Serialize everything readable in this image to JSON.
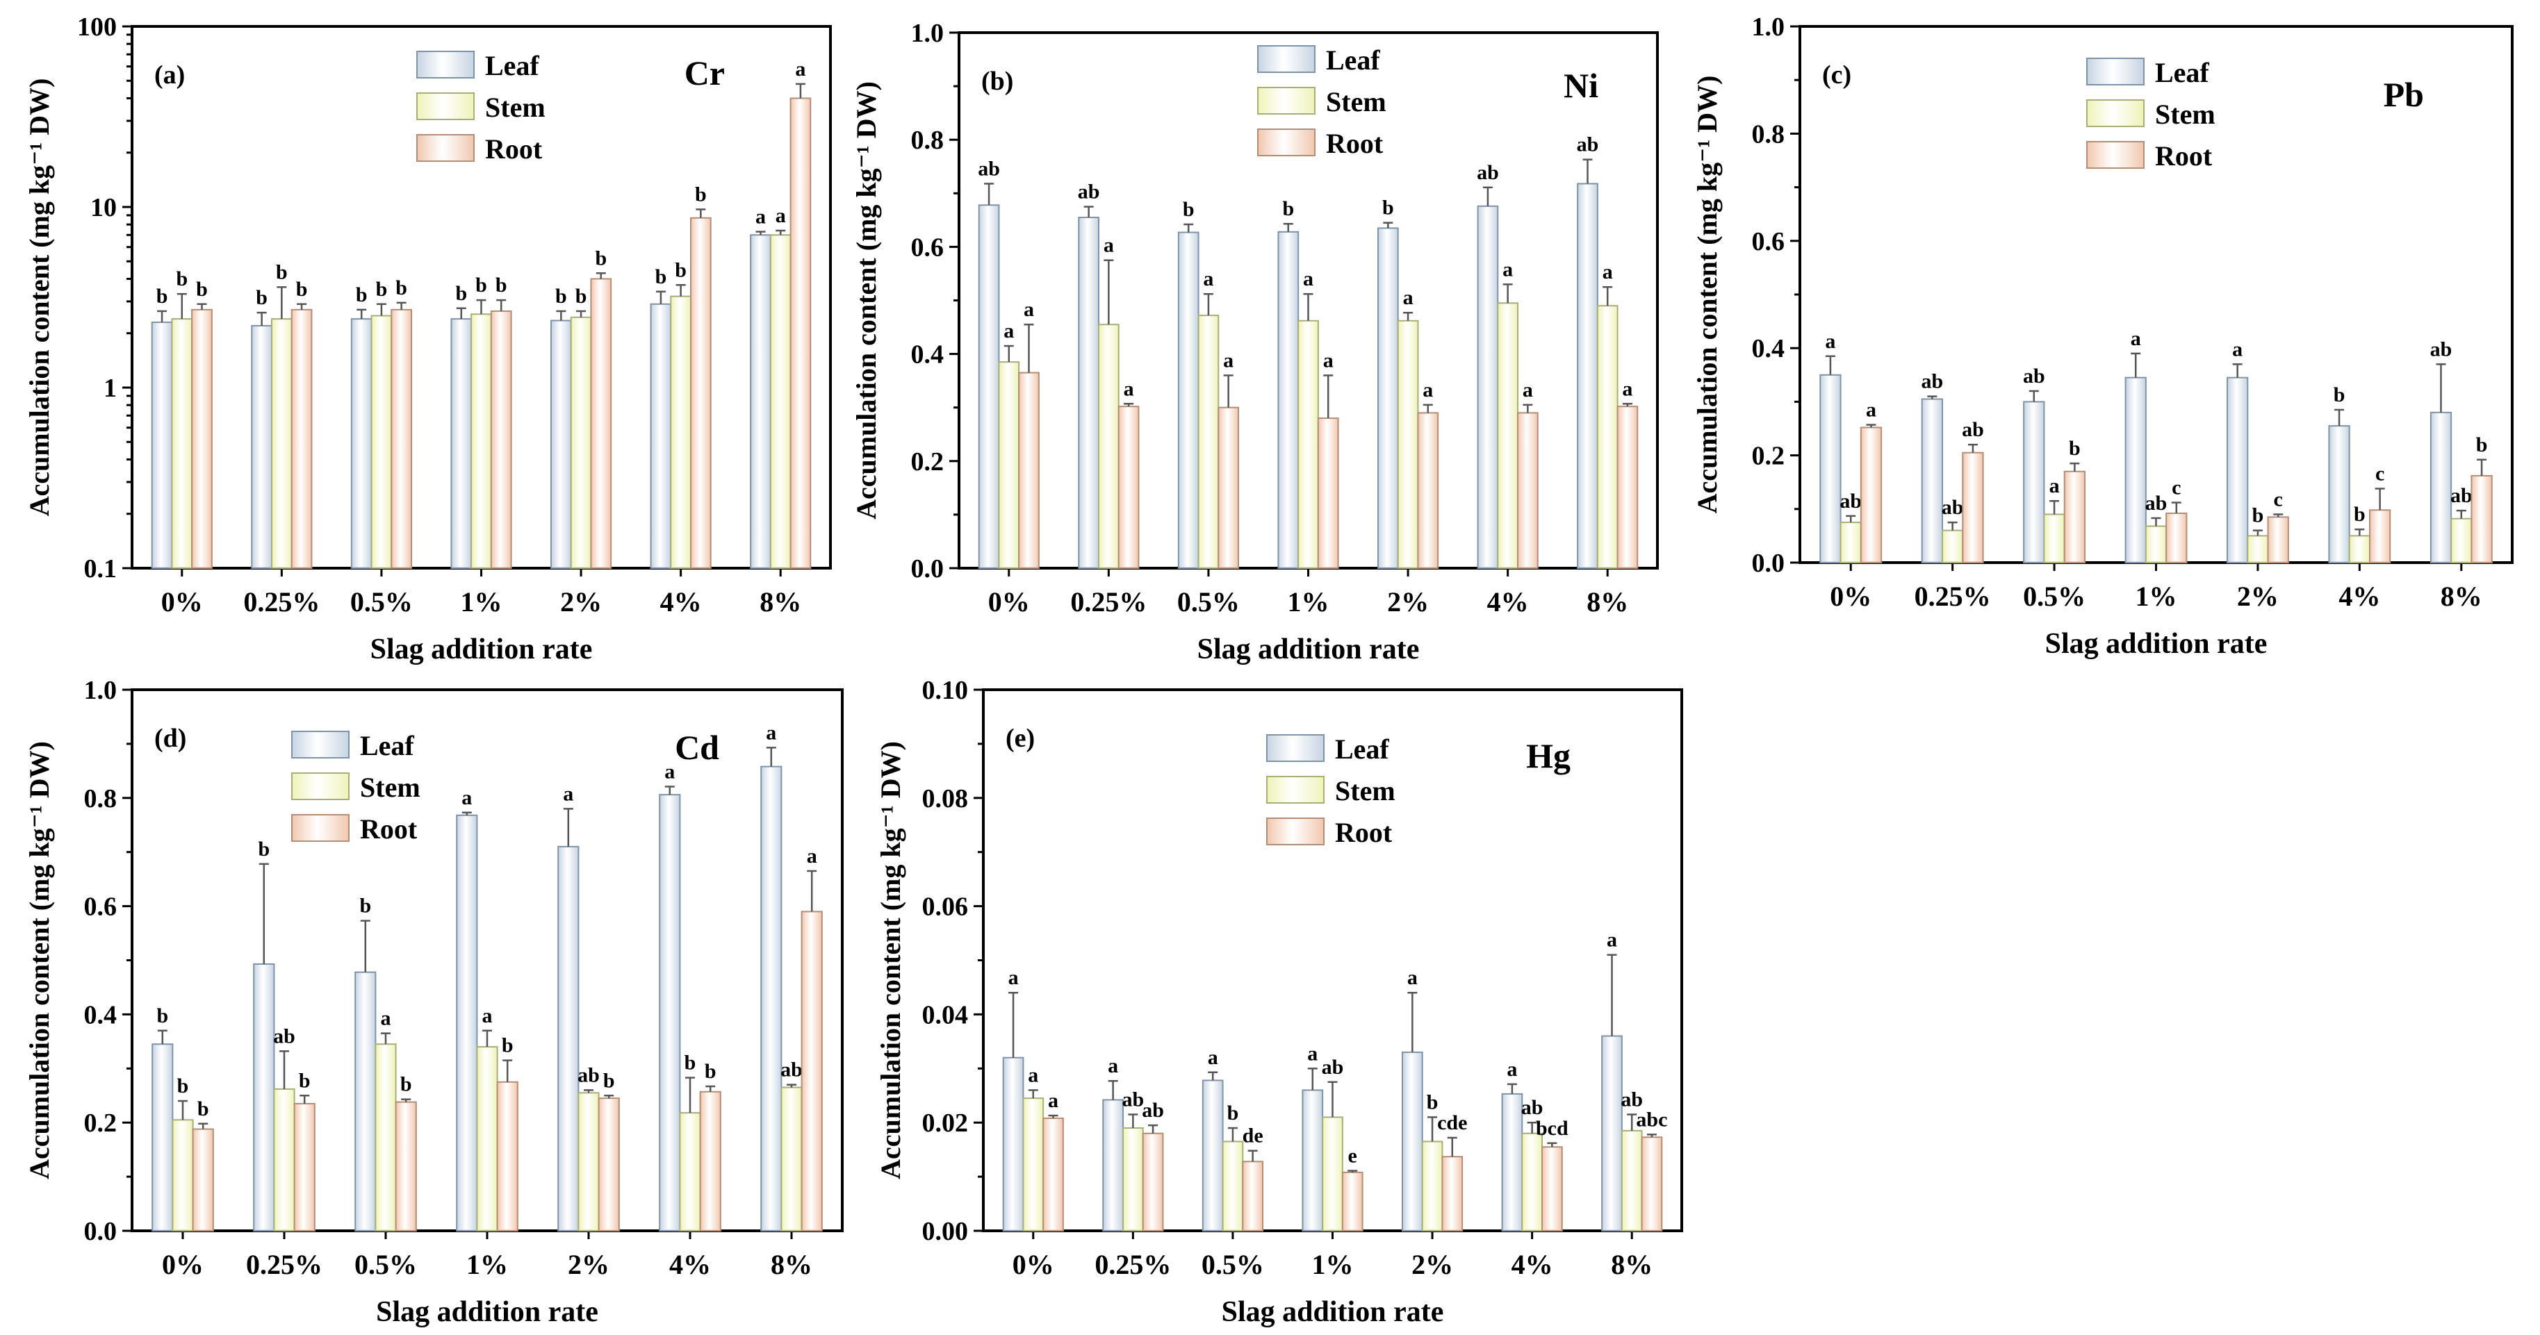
{
  "colors": {
    "leaf": "#c5d3e2",
    "stem": "#eef3b6",
    "root": "#f1c6ad",
    "leaf_edge": "#7f93a8",
    "stem_edge": "#a9ad78",
    "root_edge": "#b48d76"
  },
  "chart_data": [
    {
      "type": "bar",
      "panel": "(a)",
      "element": "Cr",
      "title": "Cr",
      "xlabel": "Slag addition rate",
      "ylabel": "Accumulation content (mg kg⁻¹ DW)",
      "yscale": "log",
      "ylim": [
        0.1,
        100
      ],
      "yticks": [
        "0.1",
        "1",
        "10",
        "100"
      ],
      "categories": [
        "0%",
        "0.25%",
        "0.5%",
        "1%",
        "2%",
        "4%",
        "8%"
      ],
      "legend": "top-center",
      "series": [
        {
          "name": "Leaf",
          "values": [
            2.3,
            2.2,
            2.4,
            2.4,
            2.35,
            2.9,
            7.0
          ],
          "errors": [
            0.35,
            0.4,
            0.3,
            0.35,
            0.3,
            0.5,
            0.3
          ],
          "letters": [
            "b",
            "b",
            "b",
            "b",
            "b",
            "b",
            "a"
          ]
        },
        {
          "name": "Stem",
          "values": [
            2.4,
            2.4,
            2.5,
            2.55,
            2.45,
            3.2,
            7.0
          ],
          "errors": [
            0.9,
            1.2,
            0.4,
            0.5,
            0.2,
            0.5,
            0.4
          ],
          "letters": [
            "b",
            "b",
            "b",
            "b",
            "b",
            "b",
            "a"
          ]
        },
        {
          "name": "Root",
          "values": [
            2.7,
            2.7,
            2.7,
            2.65,
            4.0,
            8.7,
            40.0
          ],
          "errors": [
            0.2,
            0.2,
            0.25,
            0.4,
            0.3,
            1.0,
            8.0
          ],
          "letters": [
            "b",
            "b",
            "b",
            "b",
            "b",
            "b",
            "a"
          ]
        }
      ]
    },
    {
      "type": "bar",
      "panel": "(b)",
      "element": "Ni",
      "title": "Ni",
      "xlabel": "Slag addition rate",
      "ylabel": "Accumulation content (mg kg⁻¹ DW)",
      "yscale": "linear",
      "ylim": [
        0.0,
        1.0
      ],
      "yticks": [
        "0.0",
        "0.2",
        "0.4",
        "0.6",
        "0.8",
        "1.0"
      ],
      "categories": [
        "0%",
        "0.25%",
        "0.5%",
        "1%",
        "2%",
        "4%",
        "8%"
      ],
      "legend": "top-center",
      "series": [
        {
          "name": "Leaf",
          "values": [
            0.678,
            0.655,
            0.627,
            0.628,
            0.635,
            0.676,
            0.718
          ],
          "errors": [
            0.04,
            0.02,
            0.015,
            0.015,
            0.01,
            0.035,
            0.045
          ],
          "letters": [
            "ab",
            "ab",
            "b",
            "b",
            "b",
            "ab",
            "ab"
          ]
        },
        {
          "name": "Stem",
          "values": [
            0.385,
            0.455,
            0.472,
            0.462,
            0.462,
            0.495,
            0.49
          ],
          "errors": [
            0.03,
            0.12,
            0.04,
            0.05,
            0.015,
            0.035,
            0.035
          ],
          "letters": [
            "a",
            "a",
            "a",
            "a",
            "a",
            "a",
            "a"
          ]
        },
        {
          "name": "Root",
          "values": [
            0.365,
            0.302,
            0.3,
            0.28,
            0.29,
            0.29,
            0.302
          ],
          "errors": [
            0.09,
            0.005,
            0.06,
            0.08,
            0.015,
            0.015,
            0.005
          ],
          "letters": [
            "a",
            "a",
            "a",
            "a",
            "a",
            "a",
            "a"
          ]
        }
      ]
    },
    {
      "type": "bar",
      "panel": "(c)",
      "element": "Pb",
      "title": "Pb",
      "xlabel": "Slag addition rate",
      "ylabel": "Accumulation content (mg kg⁻¹ DW)",
      "yscale": "linear",
      "ylim": [
        0.0,
        1.0
      ],
      "yticks": [
        "0.0",
        "0.2",
        "0.4",
        "0.6",
        "0.8",
        "1.0"
      ],
      "categories": [
        "0%",
        "0.25%",
        "0.5%",
        "1%",
        "2%",
        "4%",
        "8%"
      ],
      "legend": "top-center",
      "series": [
        {
          "name": "Leaf",
          "values": [
            0.35,
            0.305,
            0.3,
            0.345,
            0.345,
            0.255,
            0.28
          ],
          "errors": [
            0.035,
            0.005,
            0.02,
            0.045,
            0.025,
            0.03,
            0.09
          ],
          "letters": [
            "a",
            "ab",
            "ab",
            "a",
            "a",
            "b",
            "ab"
          ]
        },
        {
          "name": "Stem",
          "values": [
            0.075,
            0.06,
            0.09,
            0.068,
            0.05,
            0.05,
            0.082
          ],
          "errors": [
            0.012,
            0.015,
            0.025,
            0.015,
            0.01,
            0.012,
            0.015
          ],
          "letters": [
            "ab",
            "ab",
            "a",
            "ab",
            "b",
            "b",
            "ab"
          ]
        },
        {
          "name": "Root",
          "values": [
            0.252,
            0.205,
            0.17,
            0.092,
            0.085,
            0.098,
            0.162
          ],
          "errors": [
            0.005,
            0.015,
            0.015,
            0.02,
            0.005,
            0.04,
            0.03
          ],
          "letters": [
            "a",
            "ab",
            "b",
            "c",
            "c",
            "c",
            "b"
          ]
        }
      ]
    },
    {
      "type": "bar",
      "panel": "(d)",
      "element": "Cd",
      "title": "Cd",
      "xlabel": "Slag addition rate",
      "ylabel": "Accumulation content (mg kg⁻¹ DW)",
      "yscale": "linear",
      "ylim": [
        0.0,
        1.0
      ],
      "yticks": [
        "0.0",
        "0.2",
        "0.4",
        "0.6",
        "0.8",
        "1.0"
      ],
      "categories": [
        "0%",
        "0.25%",
        "0.5%",
        "1%",
        "2%",
        "4%",
        "8%"
      ],
      "legend": "top-center",
      "series": [
        {
          "name": "Leaf",
          "values": [
            0.345,
            0.493,
            0.478,
            0.768,
            0.71,
            0.806,
            0.858
          ],
          "errors": [
            0.025,
            0.185,
            0.095,
            0.005,
            0.07,
            0.015,
            0.035
          ],
          "letters": [
            "b",
            "b",
            "b",
            "a",
            "a",
            "a",
            "a"
          ]
        },
        {
          "name": "Stem",
          "values": [
            0.205,
            0.262,
            0.345,
            0.34,
            0.255,
            0.218,
            0.265
          ],
          "errors": [
            0.035,
            0.07,
            0.02,
            0.03,
            0.005,
            0.065,
            0.005
          ],
          "letters": [
            "b",
            "ab",
            "a",
            "a",
            "ab",
            "b",
            "ab"
          ]
        },
        {
          "name": "Root",
          "values": [
            0.188,
            0.235,
            0.238,
            0.275,
            0.245,
            0.257,
            0.59
          ],
          "errors": [
            0.01,
            0.015,
            0.005,
            0.04,
            0.005,
            0.01,
            0.075
          ],
          "letters": [
            "b",
            "b",
            "b",
            "b",
            "b",
            "b",
            "a"
          ]
        }
      ]
    },
    {
      "type": "bar",
      "panel": "(e)",
      "element": "Hg",
      "title": "Hg",
      "xlabel": "Slag addition rate",
      "ylabel": "Accumulation content (mg kg⁻¹ DW)",
      "yscale": "linear",
      "ylim": [
        0.0,
        0.1
      ],
      "yticks": [
        "0.00",
        "0.02",
        "0.04",
        "0.06",
        "0.08",
        "0.10"
      ],
      "categories": [
        "0%",
        "0.25%",
        "0.5%",
        "1%",
        "2%",
        "4%",
        "8%"
      ],
      "legend": "top-center",
      "series": [
        {
          "name": "Leaf",
          "values": [
            0.032,
            0.0242,
            0.0278,
            0.026,
            0.033,
            0.0253,
            0.036
          ],
          "errors": [
            0.012,
            0.0035,
            0.0015,
            0.004,
            0.011,
            0.0018,
            0.015
          ],
          "letters": [
            "a",
            "a",
            "a",
            "a",
            "a",
            "a",
            "a"
          ]
        },
        {
          "name": "Stem",
          "values": [
            0.0245,
            0.019,
            0.0165,
            0.021,
            0.0165,
            0.018,
            0.0185
          ],
          "errors": [
            0.0015,
            0.0025,
            0.0025,
            0.0065,
            0.0045,
            0.002,
            0.003
          ],
          "letters": [
            "a",
            "ab",
            "b",
            "ab",
            "b",
            "ab",
            "ab"
          ]
        },
        {
          "name": "Root",
          "values": [
            0.0208,
            0.018,
            0.0128,
            0.0108,
            0.0137,
            0.0155,
            0.0173
          ],
          "errors": [
            0.0005,
            0.0015,
            0.002,
            0.0003,
            0.0035,
            0.0007,
            0.0005
          ],
          "letters": [
            "a",
            "ab",
            "de",
            "e",
            "cde",
            "bcd",
            "abc"
          ]
        }
      ]
    }
  ]
}
